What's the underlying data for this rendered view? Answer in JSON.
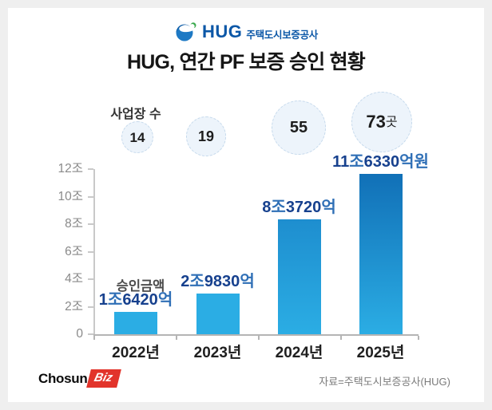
{
  "header": {
    "logo_text": "HUG",
    "logo_subtext": "주택도시보증공사",
    "title": "HUG, 연간 PF 보증 승인 현황"
  },
  "chart_data": {
    "type": "bar",
    "title": "HUG, 연간 PF 보증 승인 현황",
    "categories": [
      "2022년",
      "2023년",
      "2024년",
      "2025년"
    ],
    "values_trillion_won": [
      1.642,
      2.983,
      8.372,
      11.633
    ],
    "value_labels": [
      "1조6420억",
      "2조9830억",
      "8조3720억",
      "11조6330억원"
    ],
    "value_label_parts": [
      [
        [
          "1",
          "num"
        ],
        [
          "조",
          "unit"
        ],
        [
          "6420",
          "num"
        ],
        [
          "억",
          "unit"
        ]
      ],
      [
        [
          "2",
          "num"
        ],
        [
          "조",
          "unit"
        ],
        [
          "9830",
          "num"
        ],
        [
          "억",
          "unit"
        ]
      ],
      [
        [
          "8",
          "num"
        ],
        [
          "조",
          "unit"
        ],
        [
          "3720",
          "num"
        ],
        [
          "억",
          "unit"
        ]
      ],
      [
        [
          "11",
          "num"
        ],
        [
          "조",
          "unit"
        ],
        [
          "6330",
          "num"
        ],
        [
          "억원",
          "unit"
        ]
      ]
    ],
    "amount_label": "승인금액",
    "site_counts": {
      "label": "사업장 수",
      "values": [
        "14",
        "19",
        "55",
        "73"
      ],
      "suffixes": [
        "",
        "",
        "",
        "곳"
      ]
    },
    "y_axis": {
      "tick_labels": [
        "12조",
        "10조",
        "8조",
        "6조",
        "4조",
        "2조",
        "0"
      ],
      "tick_values": [
        12,
        10,
        8,
        6,
        4,
        2,
        0
      ],
      "ylim": [
        0,
        12
      ]
    },
    "bar_colors": [
      [
        "#2bade4"
      ],
      [
        "#2bade4"
      ],
      [
        "#1e8ecf",
        "#2bade4"
      ],
      [
        "#1170b7",
        "#2bade4"
      ]
    ],
    "legend": "none",
    "grid": "off"
  },
  "colors": {
    "logo_blue": "#0b57a7",
    "title_text": "#161616",
    "digit_blue": "#17418e",
    "unit_blue": "#2f6fb6",
    "circle_fill": "#edf4fb",
    "circle_border": "#c5d9ec",
    "circle_text": "#1d1d1d",
    "axis_gray": "#c9c9c9",
    "axis_base": "#b5b5b5",
    "y_label_gray": "#8a8a8a",
    "year_label": "#1f1f1f",
    "amount_label_gray": "#4c4c4c",
    "source_gray": "#7a7a7a",
    "chosun_red": "#e2342b",
    "page_bg": "#efefef",
    "card_bg": "#ffffff"
  },
  "footer": {
    "chosun": "Chosun",
    "biz": "Biz",
    "source": "자료=주택도시보증공사(HUG)"
  }
}
